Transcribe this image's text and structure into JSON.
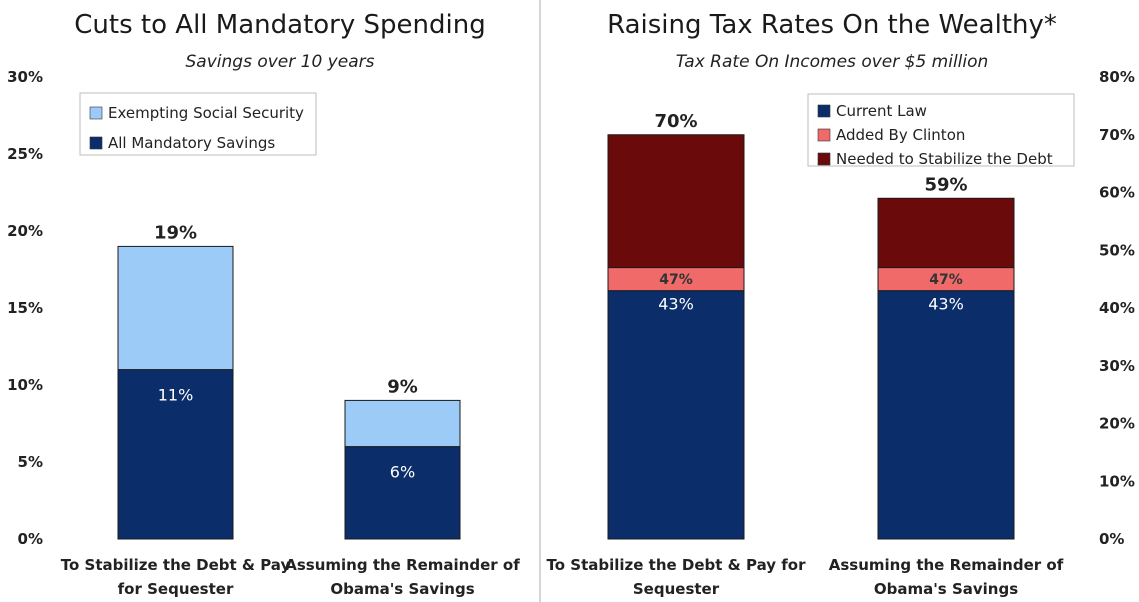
{
  "chart_data": [
    {
      "type": "bar",
      "stacked": true,
      "title": "Cuts to All Mandatory Spending",
      "subtitle": "Savings over 10 years",
      "categories": [
        [
          "To Stabilize the Debt & Pay",
          "for Sequester"
        ],
        [
          "Assuming the Remainder of",
          "Obama's Savings"
        ]
      ],
      "series": [
        {
          "name": "All Mandatory Savings",
          "color": "#0b2e6b",
          "values": [
            11,
            6
          ],
          "labels": [
            "11%",
            "6%"
          ]
        },
        {
          "name": "Exempting Social Security",
          "color": "#9dcbf7",
          "values": [
            8,
            3
          ]
        }
      ],
      "totals": [
        "19%",
        "9%"
      ],
      "ylim": [
        0,
        30
      ],
      "ticks": [
        0,
        5,
        10,
        15,
        20,
        25,
        30
      ],
      "tick_labels": [
        "0%",
        "5%",
        "10%",
        "15%",
        "20%",
        "25%",
        "30%"
      ],
      "legend_order": [
        "Exempting Social Security",
        "All Mandatory Savings"
      ],
      "legend_position": "top-left",
      "grid": false
    },
    {
      "type": "bar",
      "stacked": true,
      "title": "Raising Tax Rates On the Wealthy*",
      "subtitle": "Tax Rate On Incomes over $5 million",
      "categories": [
        [
          "To Stabilize the Debt & Pay for",
          "Sequester"
        ],
        [
          "Assuming the Remainder of",
          "Obama's Savings"
        ]
      ],
      "series": [
        {
          "name": "Current Law",
          "color": "#0b2e6b",
          "values": [
            43,
            43
          ],
          "labels": [
            "43%",
            "43%"
          ]
        },
        {
          "name": "Added By Clinton",
          "color": "#f06a6a",
          "values": [
            4,
            4
          ],
          "labels": [
            "47%",
            "47%"
          ]
        },
        {
          "name": "Needed to Stabilize the Debt",
          "color": "#6b0a0a",
          "values": [
            23,
            12
          ]
        }
      ],
      "totals": [
        "70%",
        "59%"
      ],
      "ylim": [
        0,
        80
      ],
      "ticks": [
        0,
        10,
        20,
        30,
        40,
        50,
        60,
        70,
        80
      ],
      "tick_labels": [
        "0%",
        "10%",
        "20%",
        "30%",
        "40%",
        "50%",
        "60%",
        "70%",
        "80%"
      ],
      "legend_order": [
        "Current Law",
        "Added By Clinton",
        "Needed to Stabilize the Debt"
      ],
      "legend_position": "top-right",
      "grid": false
    }
  ]
}
